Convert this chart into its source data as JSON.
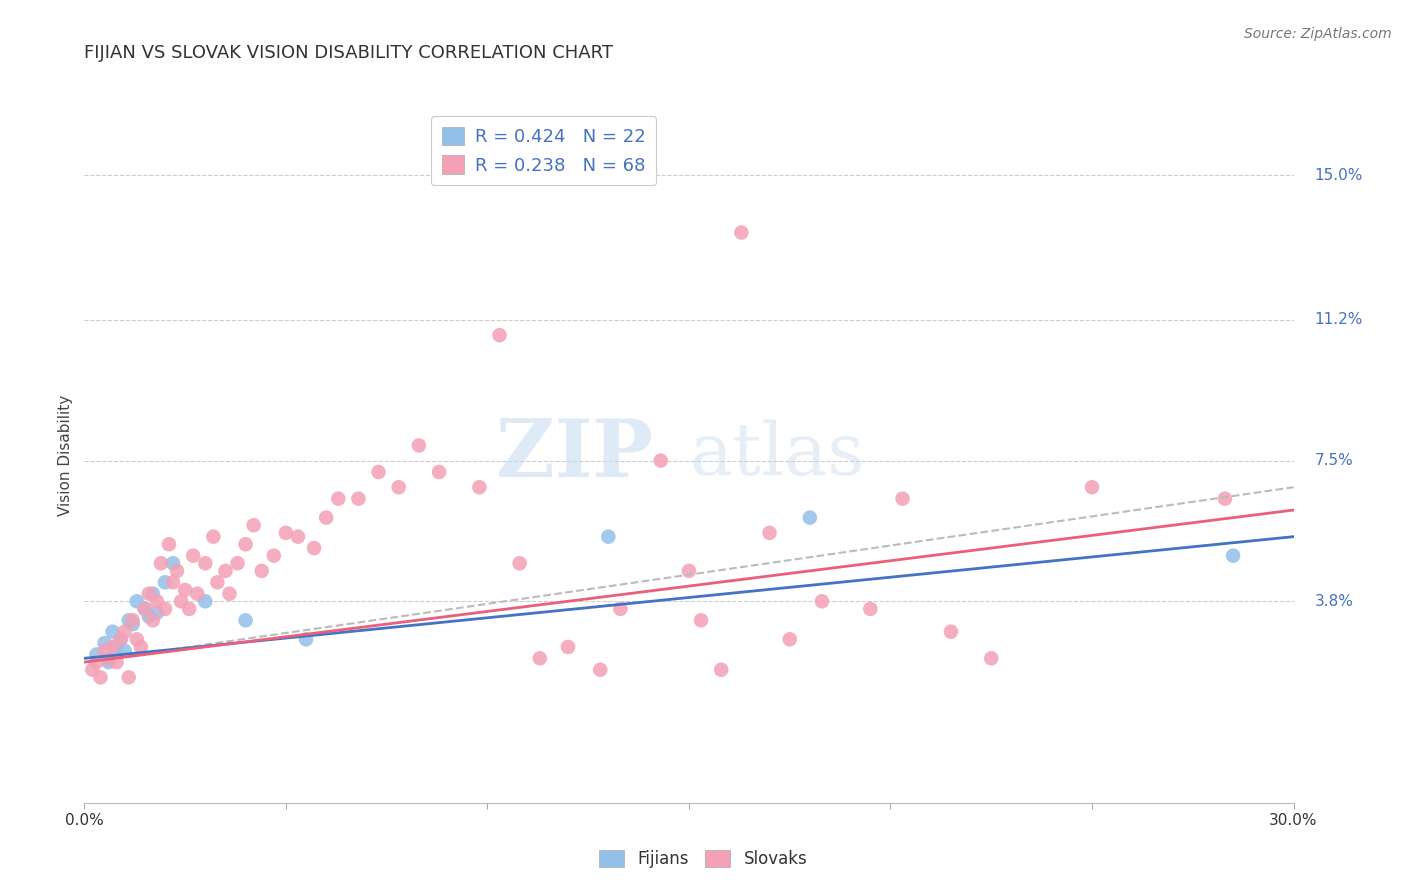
{
  "title": "FIJIAN VS SLOVAK VISION DISABILITY CORRELATION CHART",
  "source": "Source: ZipAtlas.com",
  "ylabel": "Vision Disability",
  "xlim": [
    0.0,
    0.3
  ],
  "ylim": [
    -0.015,
    0.168
  ],
  "yticks": [
    0.038,
    0.075,
    0.112,
    0.15
  ],
  "ytick_labels": [
    "3.8%",
    "7.5%",
    "11.2%",
    "15.0%"
  ],
  "xticks": [
    0.0,
    0.05,
    0.1,
    0.15,
    0.2,
    0.25,
    0.3
  ],
  "legend_r1": "R = 0.424   N = 22",
  "legend_r2": "R = 0.238   N = 68",
  "fijian_color": "#92C0E8",
  "slovak_color": "#F4A0B5",
  "fijian_line_color": "#4472C4",
  "slovak_line_color": "#E8607A",
  "dashed_line_color": "#BBBBBB",
  "watermark_zip": "ZIP",
  "watermark_atlas": "atlas",
  "fijians_label": "Fijians",
  "slovaks_label": "Slovaks",
  "fijian_points": [
    [
      0.003,
      0.024
    ],
    [
      0.005,
      0.027
    ],
    [
      0.006,
      0.022
    ],
    [
      0.007,
      0.03
    ],
    [
      0.008,
      0.026
    ],
    [
      0.009,
      0.028
    ],
    [
      0.01,
      0.025
    ],
    [
      0.011,
      0.033
    ],
    [
      0.012,
      0.032
    ],
    [
      0.013,
      0.038
    ],
    [
      0.015,
      0.036
    ],
    [
      0.016,
      0.034
    ],
    [
      0.017,
      0.04
    ],
    [
      0.018,
      0.035
    ],
    [
      0.02,
      0.043
    ],
    [
      0.022,
      0.048
    ],
    [
      0.03,
      0.038
    ],
    [
      0.04,
      0.033
    ],
    [
      0.055,
      0.028
    ],
    [
      0.13,
      0.055
    ],
    [
      0.18,
      0.06
    ],
    [
      0.285,
      0.05
    ]
  ],
  "slovak_points": [
    [
      0.002,
      0.02
    ],
    [
      0.003,
      0.022
    ],
    [
      0.004,
      0.018
    ],
    [
      0.005,
      0.025
    ],
    [
      0.006,
      0.023
    ],
    [
      0.007,
      0.026
    ],
    [
      0.008,
      0.022
    ],
    [
      0.009,
      0.028
    ],
    [
      0.01,
      0.03
    ],
    [
      0.011,
      0.018
    ],
    [
      0.012,
      0.033
    ],
    [
      0.013,
      0.028
    ],
    [
      0.014,
      0.026
    ],
    [
      0.015,
      0.036
    ],
    [
      0.016,
      0.04
    ],
    [
      0.017,
      0.033
    ],
    [
      0.018,
      0.038
    ],
    [
      0.019,
      0.048
    ],
    [
      0.02,
      0.036
    ],
    [
      0.021,
      0.053
    ],
    [
      0.022,
      0.043
    ],
    [
      0.023,
      0.046
    ],
    [
      0.024,
      0.038
    ],
    [
      0.025,
      0.041
    ],
    [
      0.026,
      0.036
    ],
    [
      0.027,
      0.05
    ],
    [
      0.028,
      0.04
    ],
    [
      0.03,
      0.048
    ],
    [
      0.032,
      0.055
    ],
    [
      0.033,
      0.043
    ],
    [
      0.035,
      0.046
    ],
    [
      0.036,
      0.04
    ],
    [
      0.038,
      0.048
    ],
    [
      0.04,
      0.053
    ],
    [
      0.042,
      0.058
    ],
    [
      0.044,
      0.046
    ],
    [
      0.047,
      0.05
    ],
    [
      0.05,
      0.056
    ],
    [
      0.053,
      0.055
    ],
    [
      0.057,
      0.052
    ],
    [
      0.06,
      0.06
    ],
    [
      0.063,
      0.065
    ],
    [
      0.068,
      0.065
    ],
    [
      0.073,
      0.072
    ],
    [
      0.078,
      0.068
    ],
    [
      0.083,
      0.079
    ],
    [
      0.088,
      0.072
    ],
    [
      0.098,
      0.068
    ],
    [
      0.103,
      0.108
    ],
    [
      0.108,
      0.048
    ],
    [
      0.113,
      0.023
    ],
    [
      0.12,
      0.026
    ],
    [
      0.128,
      0.02
    ],
    [
      0.133,
      0.036
    ],
    [
      0.143,
      0.075
    ],
    [
      0.15,
      0.046
    ],
    [
      0.153,
      0.033
    ],
    [
      0.158,
      0.02
    ],
    [
      0.163,
      0.135
    ],
    [
      0.17,
      0.056
    ],
    [
      0.175,
      0.028
    ],
    [
      0.183,
      0.038
    ],
    [
      0.195,
      0.036
    ],
    [
      0.203,
      0.065
    ],
    [
      0.215,
      0.03
    ],
    [
      0.225,
      0.023
    ],
    [
      0.25,
      0.068
    ],
    [
      0.283,
      0.065
    ]
  ],
  "fijian_trend": [
    0.023,
    0.055
  ],
  "slovak_trend": [
    0.022,
    0.062
  ],
  "dashed_trend": [
    0.022,
    0.068
  ]
}
